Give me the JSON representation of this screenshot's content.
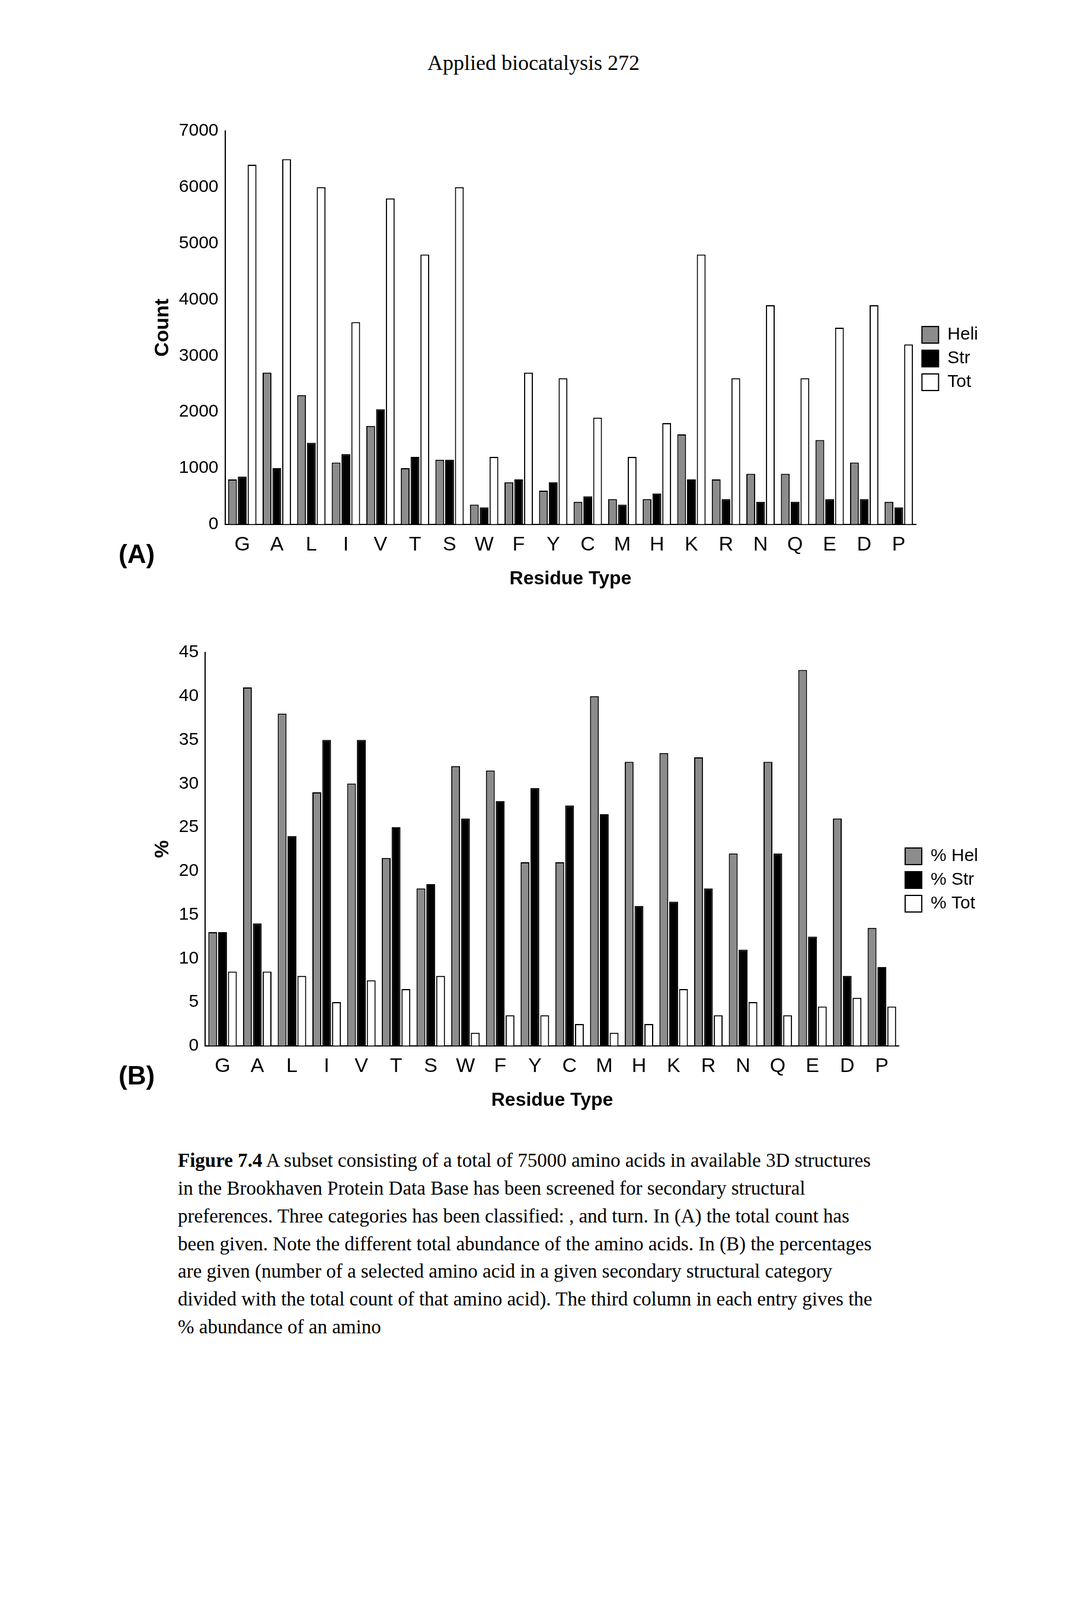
{
  "header": "Applied biocatalysis 272",
  "chart_data": [
    {
      "type": "bar",
      "annotations": [
        "(A)"
      ],
      "x_label": "Residue Type",
      "y_label": "Count",
      "categories": [
        "G",
        "A",
        "L",
        "I",
        "V",
        "T",
        "S",
        "W",
        "F",
        "Y",
        "C",
        "M",
        "H",
        "K",
        "R",
        "N",
        "Q",
        "E",
        "D",
        "P"
      ],
      "series": [
        {
          "name": "Heli",
          "color": "#8c8c8c",
          "values": [
            800,
            2700,
            2300,
            1100,
            1750,
            1000,
            1150,
            350,
            750,
            600,
            400,
            450,
            450,
            1600,
            800,
            900,
            900,
            1500,
            1100,
            400
          ]
        },
        {
          "name": "Str",
          "color": "#000000",
          "values": [
            850,
            1000,
            1450,
            1250,
            2050,
            1200,
            1150,
            300,
            800,
            750,
            500,
            350,
            550,
            800,
            450,
            400,
            400,
            450,
            450,
            300
          ]
        },
        {
          "name": "Tot",
          "color": "#ffffff",
          "values": [
            6400,
            6500,
            6000,
            3600,
            5800,
            4800,
            6000,
            1200,
            2700,
            2600,
            1900,
            1200,
            1800,
            4800,
            2600,
            3900,
            2600,
            3500,
            3900,
            3200
          ]
        }
      ],
      "ylim": [
        0,
        7000
      ],
      "yticks": [
        0,
        1000,
        2000,
        3000,
        4000,
        5000,
        6000,
        7000
      ],
      "grid": false,
      "legend": "right"
    },
    {
      "type": "bar",
      "annotations": [
        "(B)"
      ],
      "x_label": "Residue Type",
      "y_label": "%",
      "categories": [
        "G",
        "A",
        "L",
        "I",
        "V",
        "T",
        "S",
        "W",
        "F",
        "Y",
        "C",
        "M",
        "H",
        "K",
        "R",
        "N",
        "Q",
        "E",
        "D",
        "P"
      ],
      "series": [
        {
          "name": "% Hel",
          "color": "#8c8c8c",
          "values": [
            13,
            41,
            38,
            29,
            30,
            21.5,
            18,
            32,
            31.5,
            21,
            21,
            40,
            32.5,
            33.5,
            33,
            22,
            32.5,
            43,
            26,
            13.5
          ]
        },
        {
          "name": "% Str",
          "color": "#000000",
          "values": [
            13,
            14,
            24,
            35,
            35,
            25,
            18.5,
            26,
            28,
            29.5,
            27.5,
            26.5,
            16,
            16.5,
            18,
            11,
            22,
            12.5,
            8,
            9
          ]
        },
        {
          "name": "% Tot",
          "color": "#ffffff",
          "values": [
            8.5,
            8.5,
            8,
            5,
            7.5,
            6.5,
            8,
            1.5,
            3.5,
            3.5,
            2.5,
            1.5,
            2.5,
            6.5,
            3.5,
            5,
            3.5,
            4.5,
            5.5,
            4.5
          ]
        }
      ],
      "ylim": [
        0,
        45
      ],
      "yticks": [
        0,
        5,
        10,
        15,
        20,
        25,
        30,
        35,
        40,
        45
      ],
      "grid": false,
      "legend": "right"
    }
  ],
  "caption": {
    "label": "Figure 7.4",
    "text": "A subset consisting of a total of 75000 amino acids in available 3D structures in the Brookhaven Protein Data Base has been screened for secondary structural preferences. Three categories has been classified: , and turn. In (A) the total count has been given. Note the different total abundance of the amino acids. In (B) the percentages are given (number of a selected amino acid in a given secondary structural category divided with the total count of that amino acid). The third column in each entry gives the % abundance of an amino"
  }
}
